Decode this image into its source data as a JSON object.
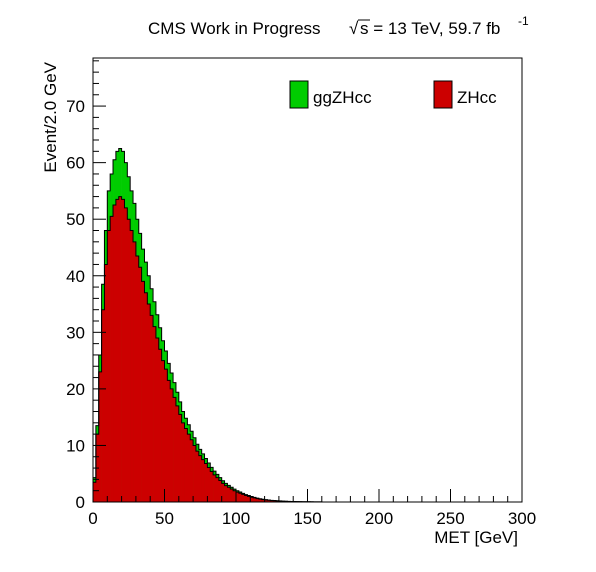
{
  "chart_data": {
    "type": "bar",
    "stacked": true,
    "title": "CMS Work in Progress",
    "energy_label": "s = 13 TeV, 59.7 fb",
    "energy_sqrt_symbol": "√",
    "lumi_exponent": "-1",
    "xlabel": "MET [GeV]",
    "ylabel": "Event/2.0 GeV",
    "xlim": [
      0,
      300
    ],
    "ylim": [
      0,
      78.5
    ],
    "bin_width": 2,
    "x_ticks": [
      0,
      50,
      100,
      150,
      200,
      250,
      300
    ],
    "y_ticks": [
      0,
      10,
      20,
      30,
      40,
      50,
      60,
      70
    ],
    "legend_position": "top-right",
    "grid": false,
    "series": [
      {
        "name": "ZHcc",
        "color": "#cc0000",
        "values": [
          3.5,
          12,
          23,
          34,
          42,
          48,
          50.5,
          52.5,
          53.5,
          54,
          53.5,
          52,
          50,
          48,
          46,
          43.5,
          41.5,
          39,
          37,
          35,
          33,
          31,
          29,
          27,
          25,
          23.5,
          21.5,
          20,
          18.5,
          17,
          15.5,
          14,
          13,
          12,
          11,
          10,
          9,
          8.2,
          7.5,
          6.8,
          6.1,
          5.4,
          4.8,
          4.3,
          3.8,
          3.3,
          2.9,
          2.6,
          2.3,
          2,
          1.75,
          1.55,
          1.35,
          1.15,
          1,
          0.85,
          0.72,
          0.6,
          0.5,
          0.42,
          0.35,
          0.3,
          0.25,
          0.22,
          0.19,
          0.16,
          0.13,
          0.11,
          0.09,
          0.08,
          0.07,
          0.06,
          0.05,
          0.045,
          0.04,
          0.035,
          0.03,
          0.025,
          0.02,
          0.02
        ]
      },
      {
        "name": "ggZHcc",
        "color": "#00cc00",
        "values": [
          0.8,
          1.5,
          3,
          4.5,
          6,
          7,
          7.5,
          8,
          8.5,
          8.5,
          8.5,
          8,
          7.5,
          7,
          6.8,
          6.5,
          6,
          5.7,
          5.4,
          5,
          4.7,
          4.4,
          4.1,
          3.8,
          3.5,
          3.2,
          3,
          2.8,
          2.6,
          2.4,
          2.2,
          2,
          1.8,
          1.65,
          1.5,
          1.35,
          1.2,
          1.1,
          1,
          0.9,
          0.8,
          0.72,
          0.65,
          0.58,
          0.5,
          0.45,
          0.4,
          0.35,
          0.31,
          0.27,
          0.24,
          0.21,
          0.18,
          0.16,
          0.14,
          0.12,
          0.1,
          0.09,
          0.08,
          0.07,
          0.06,
          0.05,
          0.045,
          0.04,
          0.035,
          0.03,
          0.025,
          0.02,
          0.018,
          0.016,
          0.014,
          0.012,
          0.01,
          0.009,
          0.008,
          0.007,
          0.006,
          0.005,
          0.004,
          0.004
        ]
      }
    ]
  }
}
